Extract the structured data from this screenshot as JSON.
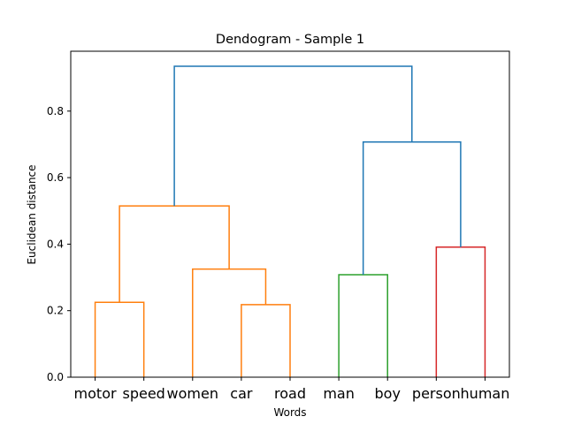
{
  "chart_data": {
    "type": "dendrogram",
    "title": "Dendogram - Sample 1",
    "xlabel": "Words",
    "ylabel": "Euclidean distance",
    "leaves": [
      "motor",
      "speed",
      "women",
      "car",
      "road",
      "man",
      "boy",
      "person",
      "human"
    ],
    "ylim": [
      0,
      0.98
    ],
    "yticks": [
      0.0,
      0.2,
      0.4,
      0.6,
      0.8
    ],
    "ytick_labels": [
      "0.0",
      "0.2",
      "0.4",
      "0.6",
      "0.8"
    ],
    "grid": false,
    "colors": {
      "orange": "#ff7f0e",
      "green": "#2ca02c",
      "red": "#d62728",
      "blue": "#1f77b4"
    },
    "links": [
      {
        "id": "motor-speed",
        "left": "motor",
        "right": "speed",
        "height": 0.225,
        "color": "#ff7f0e"
      },
      {
        "id": "car-road",
        "left": "car",
        "right": "road",
        "height": 0.218,
        "color": "#ff7f0e"
      },
      {
        "id": "women-carroad",
        "left": "women",
        "right": "car-road",
        "height": 0.325,
        "color": "#ff7f0e"
      },
      {
        "id": "ms-wcr",
        "left": "motor-speed",
        "right": "women-carroad",
        "height": 0.515,
        "color": "#ff7f0e"
      },
      {
        "id": "man-boy",
        "left": "man",
        "right": "boy",
        "height": 0.308,
        "color": "#2ca02c"
      },
      {
        "id": "person-human",
        "left": "person",
        "right": "human",
        "height": 0.391,
        "color": "#d62728"
      },
      {
        "id": "mb-ph",
        "left": "man-boy",
        "right": "person-human",
        "height": 0.707,
        "color": "#1f77b4"
      },
      {
        "id": "root",
        "left": "ms-wcr",
        "right": "mb-ph",
        "height": 0.935,
        "color": "#1f77b4"
      }
    ]
  }
}
